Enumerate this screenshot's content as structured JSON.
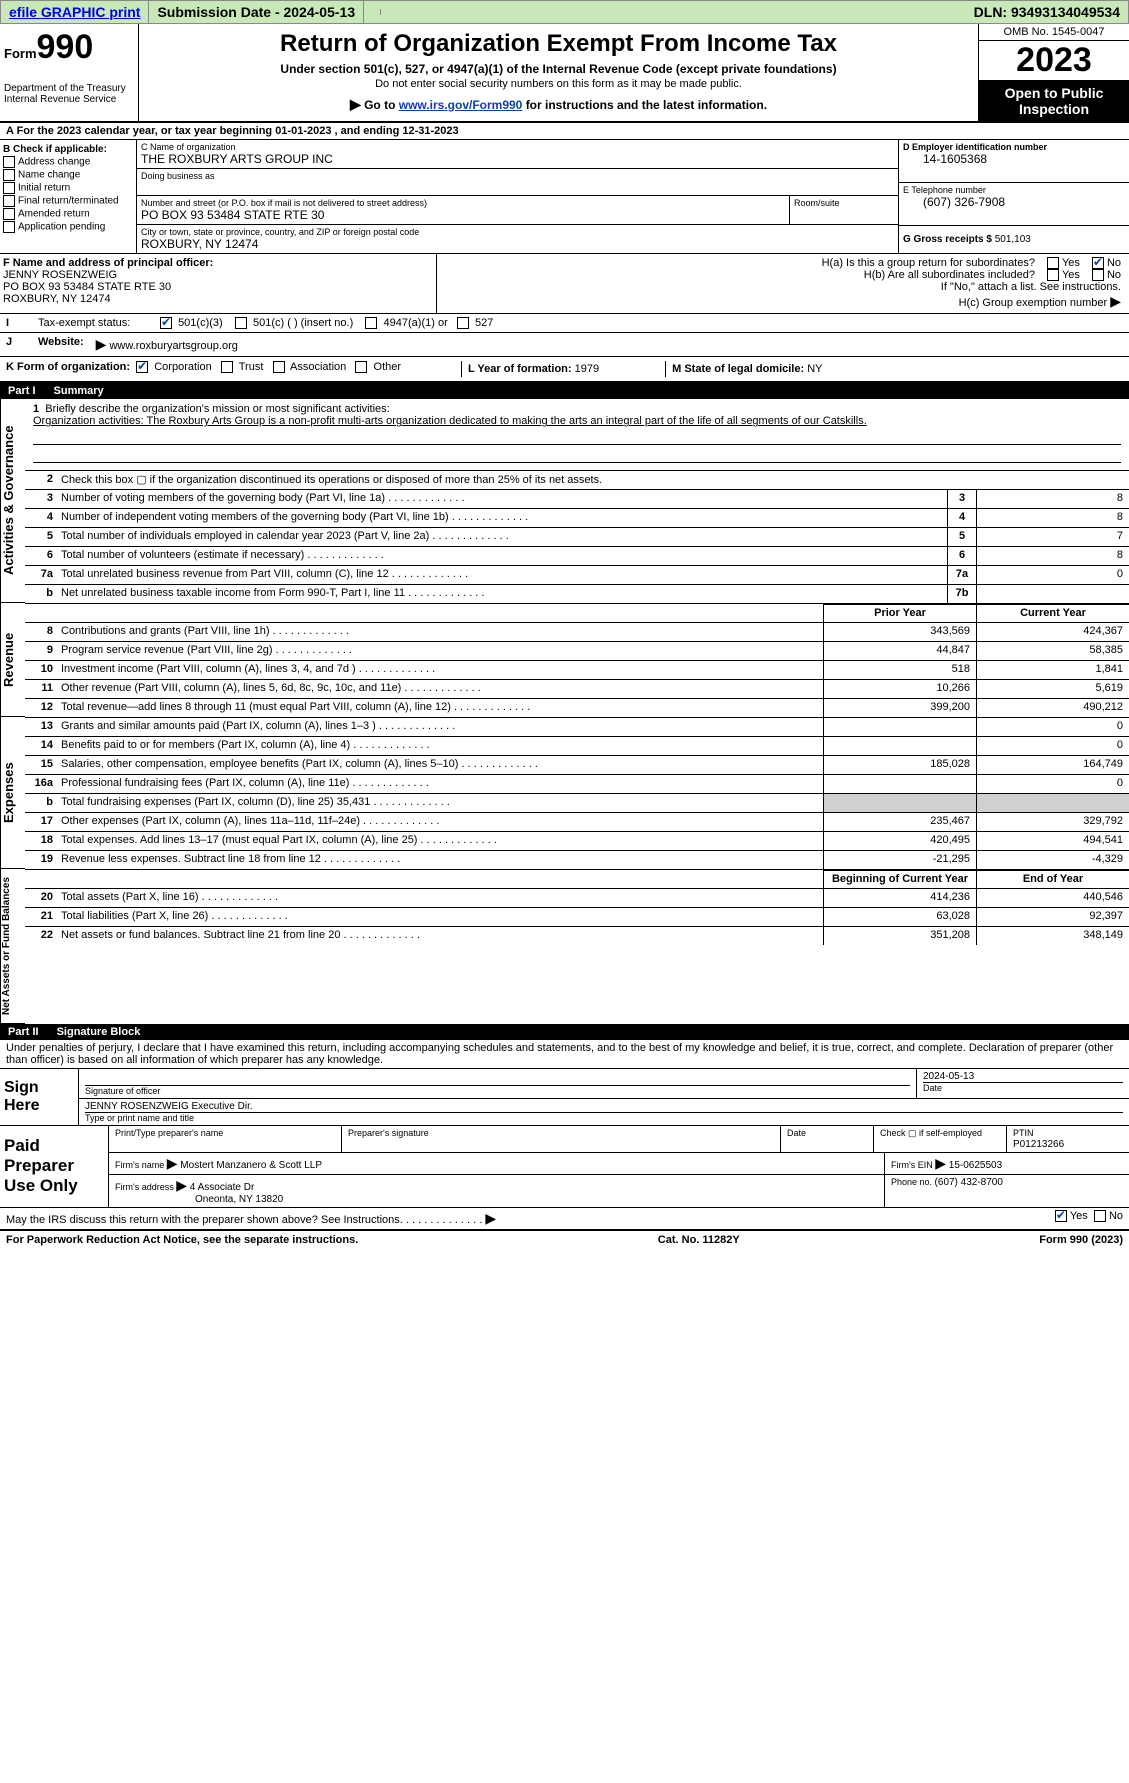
{
  "topbar": {
    "efile_label": "efile GRAPHIC print",
    "submission_label": "Submission Date - 2024-05-13",
    "dln_label": "DLN: 93493134049534"
  },
  "header": {
    "form_prefix": "Form",
    "form_number": "990",
    "title": "Return of Organization Exempt From Income Tax",
    "subtitle": "Under section 501(c), 527, or 4947(a)(1) of the Internal Revenue Code (except private foundations)",
    "no_ssn": "Do not enter social security numbers on this form as it may be made public.",
    "goto_prefix": "Go to ",
    "goto_link": "www.irs.gov/Form990",
    "goto_suffix": " for instructions and the latest information.",
    "dept": "Department of the Treasury",
    "irs": "Internal Revenue Service",
    "omb": "OMB No. 1545-0047",
    "year": "2023",
    "open_inspect": "Open to Public Inspection"
  },
  "row_a": "A  For the 2023 calendar year, or tax year beginning 01-01-2023    , and ending 12-31-2023",
  "section_b": {
    "label": "B Check if applicable:",
    "opts": [
      "Address change",
      "Name change",
      "Initial return",
      "Final return/terminated",
      "Amended return",
      "Application pending"
    ]
  },
  "section_c": {
    "name_cap": "C Name of organization",
    "name": "THE ROXBURY ARTS GROUP INC",
    "dba_cap": "Doing business as",
    "addr_cap": "Number and street (or P.O. box if mail is not delivered to street address)",
    "addr": "PO BOX 93 53484 STATE RTE 30",
    "room_cap": "Room/suite",
    "city_cap": "City or town, state or province, country, and ZIP or foreign postal code",
    "city": "ROXBURY, NY  12474"
  },
  "section_d": {
    "ein_cap": "D Employer identification number",
    "ein": "14-1605368",
    "tel_cap": "E Telephone number",
    "tel": "(607) 326-7908",
    "gross_cap": "G Gross receipts $",
    "gross": "501,103"
  },
  "section_f": {
    "cap": "F Name and address of principal officer:",
    "name": "JENNY ROSENZWEIG",
    "addr": "PO BOX 93 53484 STATE RTE 30",
    "city": "ROXBURY, NY  12474"
  },
  "section_h": {
    "ha": "H(a)  Is this a group return for subordinates?",
    "hb": "H(b)  Are all subordinates included?",
    "hb_note": "If \"No,\" attach a list. See instructions.",
    "hc": "H(c)  Group exemption number ",
    "yes": "Yes",
    "no": "No"
  },
  "row_i": {
    "label": "Tax-exempt status:",
    "o1": "501(c)(3)",
    "o2": "501(c) (  ) (insert no.)",
    "o3": "4947(a)(1) or",
    "o4": "527"
  },
  "row_j": {
    "label": "Website: ",
    "val": "www.roxburyartsgroup.org"
  },
  "row_k": {
    "label": "K Form of organization:",
    "opts": [
      "Corporation",
      "Trust",
      "Association",
      "Other"
    ],
    "l_label": "L Year of formation:",
    "l_val": "1979",
    "m_label": "M State of legal domicile:",
    "m_val": "NY"
  },
  "part1": {
    "num": "Part I",
    "title": "Summary"
  },
  "mission": {
    "line1_label": "1",
    "line1_cap": "Briefly describe the organization's mission or most significant activities:",
    "text": "Organization activities: The Roxbury Arts Group is a non-profit multi-arts organization dedicated to making the arts an integral part of the life of all segments of our Catskills."
  },
  "gov_lines": [
    {
      "n": "2",
      "t": "Check this box ▢ if the organization discontinued its operations or disposed of more than 25% of its net assets."
    },
    {
      "n": "3",
      "t": "Number of voting members of the governing body (Part VI, line 1a)",
      "box": "3",
      "v": "8"
    },
    {
      "n": "4",
      "t": "Number of independent voting members of the governing body (Part VI, line 1b)",
      "box": "4",
      "v": "8"
    },
    {
      "n": "5",
      "t": "Total number of individuals employed in calendar year 2023 (Part V, line 2a)",
      "box": "5",
      "v": "7"
    },
    {
      "n": "6",
      "t": "Total number of volunteers (estimate if necessary)",
      "box": "6",
      "v": "8"
    },
    {
      "n": "7a",
      "t": "Total unrelated business revenue from Part VIII, column (C), line 12",
      "box": "7a",
      "v": "0"
    },
    {
      "n": "b",
      "t": "Net unrelated business taxable income from Form 990-T, Part I, line 11",
      "box": "7b",
      "v": ""
    }
  ],
  "rev_header": {
    "prior": "Prior Year",
    "current": "Current Year"
  },
  "side_labels": {
    "gov": "Activities & Governance",
    "rev": "Revenue",
    "exp": "Expenses",
    "net": "Net Assets or Fund Balances"
  },
  "rev_lines": [
    {
      "n": "8",
      "t": "Contributions and grants (Part VIII, line 1h)",
      "p": "343,569",
      "c": "424,367"
    },
    {
      "n": "9",
      "t": "Program service revenue (Part VIII, line 2g)",
      "p": "44,847",
      "c": "58,385"
    },
    {
      "n": "10",
      "t": "Investment income (Part VIII, column (A), lines 3, 4, and 7d )",
      "p": "518",
      "c": "1,841"
    },
    {
      "n": "11",
      "t": "Other revenue (Part VIII, column (A), lines 5, 6d, 8c, 9c, 10c, and 11e)",
      "p": "10,266",
      "c": "5,619"
    },
    {
      "n": "12",
      "t": "Total revenue—add lines 8 through 11 (must equal Part VIII, column (A), line 12)",
      "p": "399,200",
      "c": "490,212"
    }
  ],
  "exp_lines": [
    {
      "n": "13",
      "t": "Grants and similar amounts paid (Part IX, column (A), lines 1–3 )",
      "p": "",
      "c": "0"
    },
    {
      "n": "14",
      "t": "Benefits paid to or for members (Part IX, column (A), line 4)",
      "p": "",
      "c": "0"
    },
    {
      "n": "15",
      "t": "Salaries, other compensation, employee benefits (Part IX, column (A), lines 5–10)",
      "p": "185,028",
      "c": "164,749"
    },
    {
      "n": "16a",
      "t": "Professional fundraising fees (Part IX, column (A), line 11e)",
      "p": "",
      "c": "0"
    },
    {
      "n": "b",
      "t": "Total fundraising expenses (Part IX, column (D), line 25) 35,431",
      "p": "grey",
      "c": "grey"
    },
    {
      "n": "17",
      "t": "Other expenses (Part IX, column (A), lines 11a–11d, 11f–24e)",
      "p": "235,467",
      "c": "329,792"
    },
    {
      "n": "18",
      "t": "Total expenses. Add lines 13–17 (must equal Part IX, column (A), line 25)",
      "p": "420,495",
      "c": "494,541"
    },
    {
      "n": "19",
      "t": "Revenue less expenses. Subtract line 18 from line 12",
      "p": "-21,295",
      "c": "-4,329"
    }
  ],
  "net_header": {
    "prior": "Beginning of Current Year",
    "current": "End of Year"
  },
  "net_lines": [
    {
      "n": "20",
      "t": "Total assets (Part X, line 16)",
      "p": "414,236",
      "c": "440,546"
    },
    {
      "n": "21",
      "t": "Total liabilities (Part X, line 26)",
      "p": "63,028",
      "c": "92,397"
    },
    {
      "n": "22",
      "t": "Net assets or fund balances. Subtract line 21 from line 20",
      "p": "351,208",
      "c": "348,149"
    }
  ],
  "part2": {
    "num": "Part II",
    "title": "Signature Block"
  },
  "perjury": "Under penalties of perjury, I declare that I have examined this return, including accompanying schedules and statements, and to the best of my knowledge and belief, it is true, correct, and complete. Declaration of preparer (other than officer) is based on all information of which preparer has any knowledge.",
  "sign": {
    "here": "Sign Here",
    "sig_cap": "Signature of officer",
    "date_cap": "Date",
    "date": "2024-05-13",
    "name": "JENNY ROSENZWEIG  Executive Dir.",
    "name_cap": "Type or print name and title"
  },
  "preparer": {
    "label": "Paid Preparer Use Only",
    "print_cap": "Print/Type preparer's name",
    "sig_cap": "Preparer's signature",
    "date_cap": "Date",
    "check_cap": "Check ▢ if self-employed",
    "ptin_cap": "PTIN",
    "ptin": "P01213266",
    "firm_name_cap": "Firm's name ",
    "firm_name": "Mostert Manzanero & Scott LLP",
    "firm_ein_cap": "Firm's EIN ",
    "firm_ein": "15-0625503",
    "firm_addr_cap": "Firm's address ",
    "firm_addr": "4 Associate Dr",
    "firm_city": "Oneonta, NY  13820",
    "phone_cap": "Phone no. ",
    "phone": "(607) 432-8700"
  },
  "discuss": {
    "q": "May the IRS discuss this return with the preparer shown above? See Instructions.",
    "yes": "Yes",
    "no": "No"
  },
  "footer": {
    "left": "For Paperwork Reduction Act Notice, see the separate instructions.",
    "mid": "Cat. No. 11282Y",
    "right": "Form 990 (2023)"
  }
}
